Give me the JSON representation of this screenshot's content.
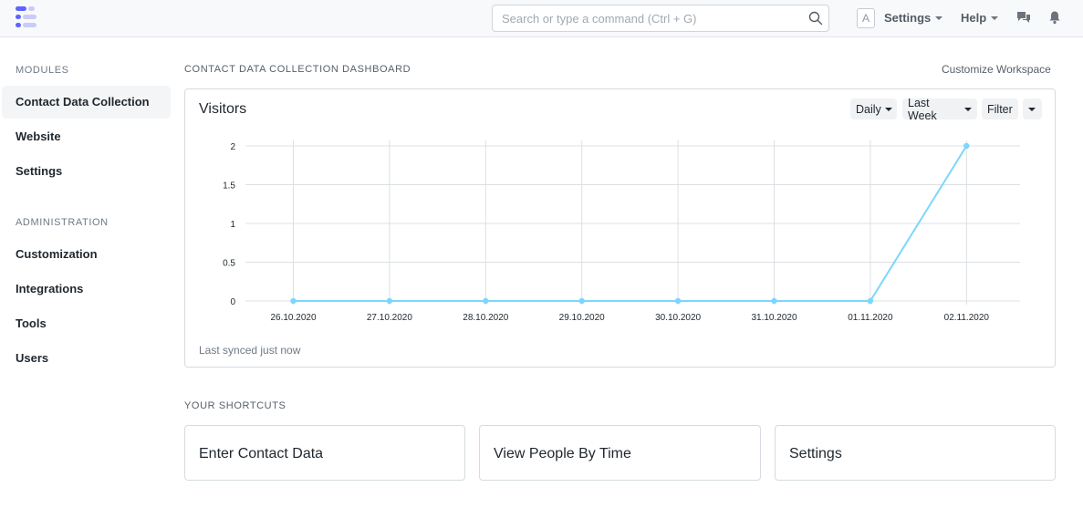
{
  "navbar": {
    "search_placeholder": "Search or type a command (Ctrl + G)",
    "avatar_letter": "A",
    "settings_label": "Settings",
    "help_label": "Help"
  },
  "sidebar": {
    "modules_heading": "MODULES",
    "modules": [
      {
        "label": "Contact Data Collection",
        "active": true
      },
      {
        "label": "Website"
      },
      {
        "label": "Settings"
      }
    ],
    "admin_heading": "ADMINISTRATION",
    "admin": [
      {
        "label": "Customization"
      },
      {
        "label": "Integrations"
      },
      {
        "label": "Tools"
      },
      {
        "label": "Users"
      }
    ]
  },
  "main": {
    "page_title": "CONTACT DATA COLLECTION DASHBOARD",
    "customize_label": "Customize Workspace",
    "card": {
      "title": "Visitors",
      "interval_label": "Daily",
      "timespan_label": "Last Week",
      "filter_label": "Filter",
      "synced_text": "Last synced just now"
    },
    "shortcuts_heading": "YOUR SHORTCUTS",
    "shortcuts": [
      "Enter Contact Data",
      "View People By Time",
      "Settings"
    ]
  },
  "colors": {
    "line": "#7cd6fd",
    "grid": "#dce0e3",
    "accent": "#5e64ff"
  },
  "chart_data": {
    "type": "line",
    "title": "Visitors",
    "categories": [
      "26.10.2020",
      "27.10.2020",
      "28.10.2020",
      "29.10.2020",
      "30.10.2020",
      "31.10.2020",
      "01.11.2020",
      "02.11.2020"
    ],
    "series": [
      {
        "values": [
          0,
          0,
          0,
          0,
          0,
          0,
          0,
          2
        ]
      }
    ],
    "yticks": [
      "0",
      "0.5",
      "1",
      "1.5",
      "2"
    ],
    "ylim": [
      0,
      2
    ],
    "grid": true
  }
}
